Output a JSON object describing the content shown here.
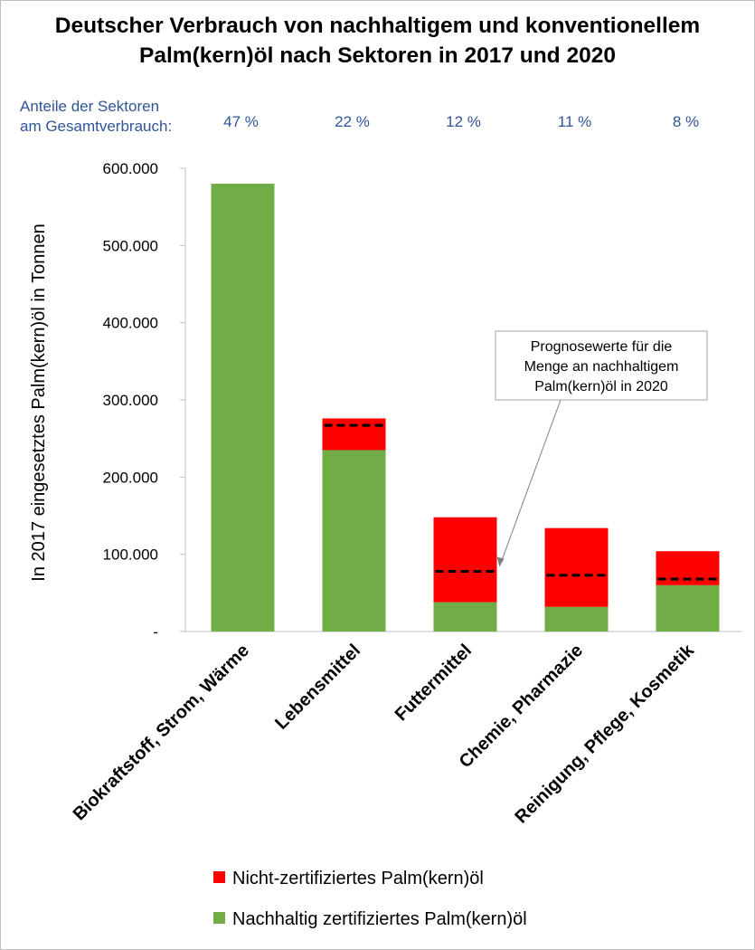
{
  "title": {
    "line1": "Deutscher Verbrauch von nachhaltigem und konventionellem",
    "line2": "Palm(kern)öl nach Sektoren in 2017 und 2020"
  },
  "shares_label": {
    "line1": "Anteile der Sektoren",
    "line2": "am Gesamtverbrauch:"
  },
  "colors": {
    "sustainable": "#70ad47",
    "non_certified": "#ff0000",
    "forecast": "#000000",
    "shares_text": "#2f5597"
  },
  "callout": {
    "lines": [
      "Prognosewerte für die",
      "Menge an nachhaltigem",
      "Palm(kern)öl in 2020"
    ]
  },
  "legend": {
    "non_certified": "Nicht-zertifiziertes Palm(kern)öl",
    "sustainable": "Nachhaltig zertifiziertes Palm(kern)öl"
  },
  "chart_data": {
    "type": "bar",
    "stacked": true,
    "categories": [
      "Biokraftstoff, Strom, Wärme",
      "Lebensmittel",
      "Futtermittel",
      "Chemie, Pharmazie",
      "Reinigung, Pflege, Kosmetik"
    ],
    "shares": [
      "47 %",
      "22 %",
      "12 %",
      "11 %",
      "8 %"
    ],
    "series": [
      {
        "name": "Nachhaltig zertifiziertes Palm(kern)öl",
        "values": [
          580000,
          235000,
          38000,
          32000,
          60000
        ]
      },
      {
        "name": "Nicht-zertifiziertes Palm(kern)öl",
        "values": [
          0,
          41000,
          110000,
          102000,
          44000
        ]
      }
    ],
    "forecast_2020": [
      null,
      267000,
      78000,
      73000,
      68000
    ],
    "ylabel": "In 2017 eingesetztes Palm(kern)öl in Tonnen",
    "ylim": [
      0,
      600000
    ],
    "yticks": [
      0,
      100000,
      200000,
      300000,
      400000,
      500000,
      600000
    ],
    "ytick_labels": [
      "-",
      "100.000",
      "200.000",
      "300.000",
      "400.000",
      "500.000",
      "600.000"
    ],
    "grid": false,
    "legend_position": "bottom"
  }
}
